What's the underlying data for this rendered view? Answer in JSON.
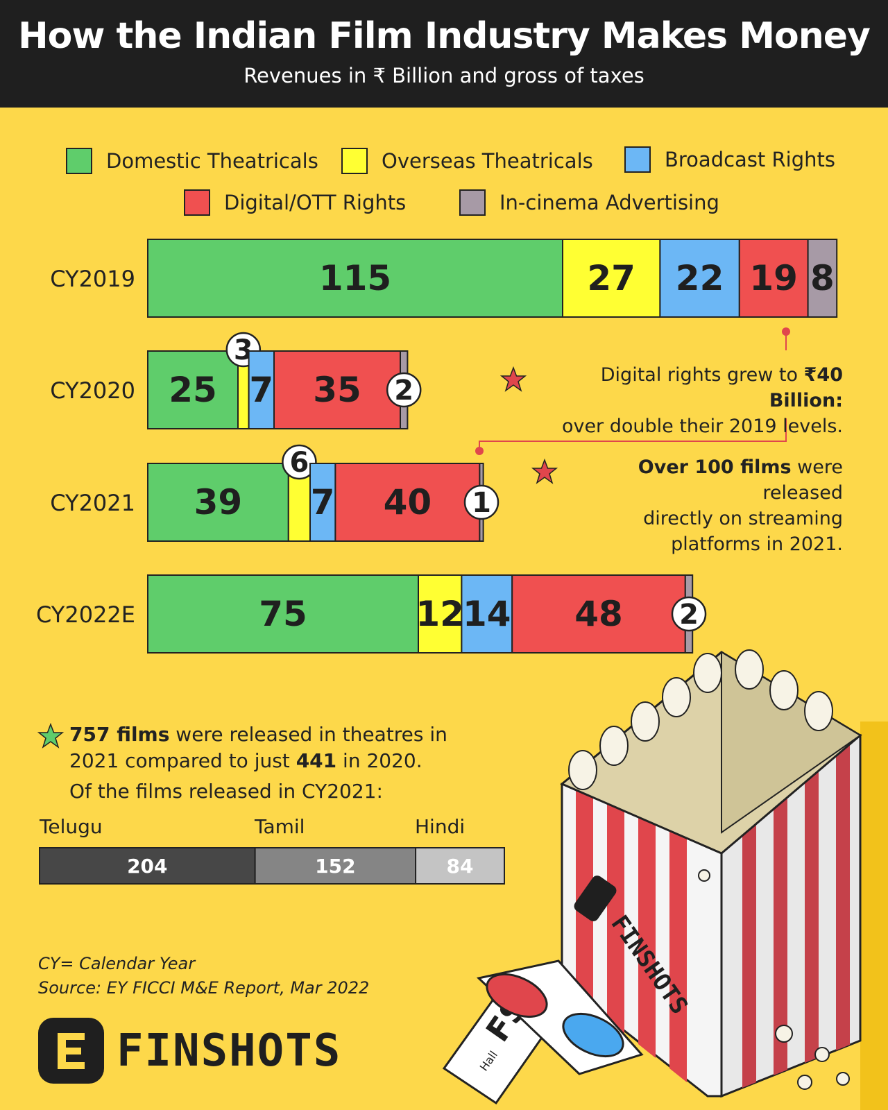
{
  "header": {
    "title": "How the Indian Film Industry Makes Money",
    "subtitle": "Revenues in ₹ Billion and gross of taxes"
  },
  "legend": [
    {
      "label": "Domestic Theatricals",
      "color": "#5fcd6b"
    },
    {
      "label": "Overseas Theatricals",
      "color": "#ffff33"
    },
    {
      "label": "Broadcast Rights",
      "color": "#6cb7f5"
    },
    {
      "label": "Digital/OTT Rights",
      "color": "#f05050"
    },
    {
      "label": "In-cinema Advertising",
      "color": "#a79aa6"
    }
  ],
  "chart_data": {
    "type": "bar",
    "orientation": "horizontal",
    "stacked": true,
    "categories": [
      "CY2019",
      "CY2020",
      "CY2021",
      "CY2022E"
    ],
    "series": [
      {
        "name": "Domestic Theatricals",
        "values": [
          115,
          25,
          39,
          75
        ],
        "color": "#5fcd6b"
      },
      {
        "name": "Overseas Theatricals",
        "values": [
          27,
          3,
          6,
          12
        ],
        "color": "#ffff33"
      },
      {
        "name": "Broadcast Rights",
        "values": [
          22,
          7,
          7,
          14
        ],
        "color": "#6cb7f5"
      },
      {
        "name": "Digital/OTT Rights",
        "values": [
          19,
          35,
          40,
          48
        ],
        "color": "#f05050"
      },
      {
        "name": "In-cinema Advertising",
        "values": [
          8,
          2,
          1,
          2
        ],
        "color": "#a79aa6"
      }
    ]
  },
  "annotations": {
    "digital": {
      "pre": "Digital rights grew to ",
      "bold": "₹40 Billion:",
      "line2": "over double their 2019 levels."
    },
    "streaming": {
      "bold": "Over 100 films",
      "post": " were released",
      "line2": "directly on streaming",
      "line3": "platforms in 2021."
    }
  },
  "theatre": {
    "count_bold": "757 films",
    "text1": " were released in theatres in",
    "text2_pre": "2021 compared to just ",
    "count2_bold": "441",
    "text2_post": " in 2020.",
    "intro": "Of the films released in CY2021:",
    "languages": [
      {
        "label": "Telugu",
        "value": 204,
        "color": "#474747"
      },
      {
        "label": "Tamil",
        "value": 152,
        "color": "#858585"
      },
      {
        "label": "Hindi",
        "value": 84,
        "color": "#c4c4c4"
      }
    ]
  },
  "footnote": {
    "line1": "CY= Calendar Year",
    "line2": "Source: EY FICCI M&E Report, Mar 2022"
  },
  "brand": "FINSHOTS",
  "popcorn_box_text": "FINSHOTS",
  "ticket_text": {
    "big": "FS",
    "small": "Hall"
  }
}
